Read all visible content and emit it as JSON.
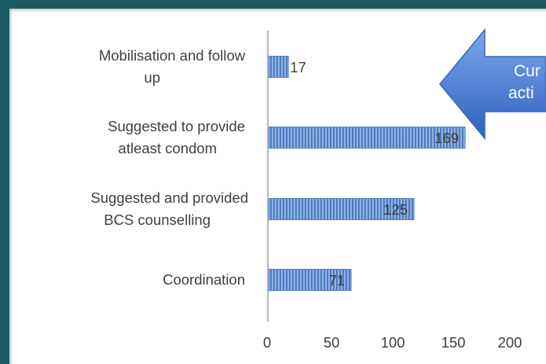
{
  "chart_data": {
    "type": "bar",
    "orientation": "horizontal",
    "categories": [
      [
        "Mobilisation and follow",
        "up"
      ],
      [
        "Suggested to provide",
        "atleast condom"
      ],
      [
        "Suggested and provided",
        "BCS counselling"
      ],
      [
        "Coordination"
      ]
    ],
    "values": [
      17,
      169,
      125,
      71
    ],
    "value_labels": [
      "17",
      "169",
      "125",
      "71"
    ],
    "x_ticks": [
      "0",
      "50",
      "100",
      "150",
      "200"
    ],
    "xlim": [
      0,
      200
    ],
    "grid": false,
    "bar_color": "#6d95d1"
  },
  "callout": {
    "lines": [
      "Cur",
      "acti"
    ],
    "color": "#4f83d7"
  }
}
